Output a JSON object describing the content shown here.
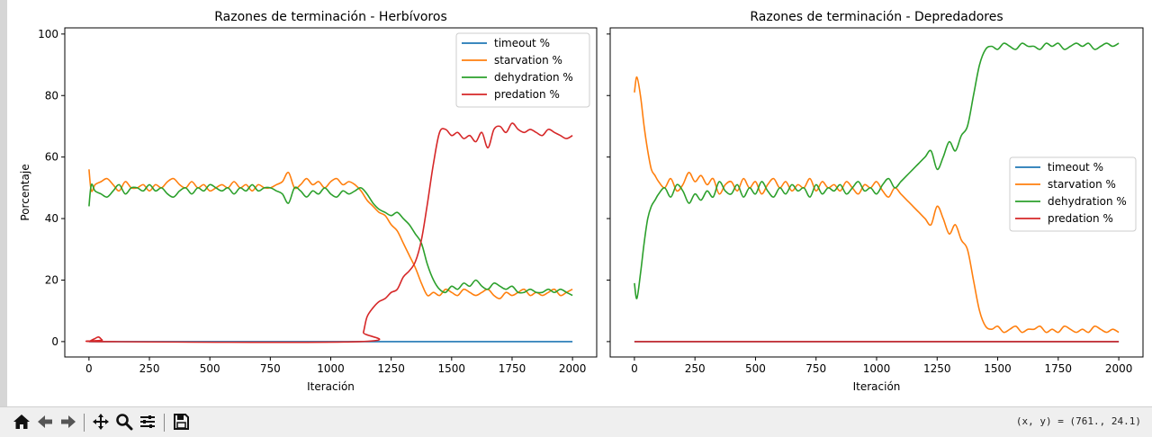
{
  "chart_data": [
    {
      "type": "line",
      "title": "Razones de terminación - Herbívoros",
      "xlabel": "Iteración",
      "ylabel": "Porcentaje",
      "xlim": [
        -100,
        2100
      ],
      "ylim": [
        -5,
        102
      ],
      "xticks": [
        0,
        250,
        500,
        750,
        1000,
        1250,
        1500,
        1750,
        2000
      ],
      "yticks": [
        0,
        20,
        40,
        60,
        80,
        100
      ],
      "grid": false,
      "legend": "upper right",
      "series": [
        {
          "name": "timeout %",
          "color": "#1f77b4",
          "x": [
            0,
            2000
          ],
          "y": [
            0,
            0
          ]
        },
        {
          "name": "starvation %",
          "color": "#ff7f0e",
          "x": [
            0,
            10,
            25,
            50,
            75,
            100,
            125,
            150,
            175,
            200,
            225,
            250,
            275,
            300,
            325,
            350,
            375,
            400,
            425,
            450,
            475,
            500,
            525,
            550,
            575,
            600,
            625,
            650,
            675,
            700,
            725,
            750,
            775,
            800,
            825,
            850,
            875,
            900,
            925,
            950,
            975,
            1000,
            1025,
            1050,
            1075,
            1100,
            1125,
            1150,
            1175,
            1200,
            1225,
            1250,
            1275,
            1300,
            1325,
            1350,
            1375,
            1400,
            1425,
            1450,
            1475,
            1500,
            1525,
            1550,
            1575,
            1600,
            1625,
            1650,
            1675,
            1700,
            1725,
            1750,
            1775,
            1800,
            1825,
            1850,
            1875,
            1900,
            1925,
            1950,
            1975,
            2000
          ],
          "y": [
            56,
            49,
            51,
            52,
            53,
            51,
            49,
            52,
            50,
            50,
            51,
            49,
            51,
            50,
            52,
            53,
            51,
            50,
            52,
            50,
            51,
            49,
            50,
            51,
            50,
            52,
            50,
            51,
            49,
            51,
            50,
            50,
            51,
            52,
            55,
            50,
            51,
            53,
            51,
            52,
            50,
            52,
            53,
            51,
            52,
            51,
            49,
            46,
            44,
            42,
            41,
            38,
            36,
            32,
            28,
            24,
            19,
            15,
            16,
            15,
            17,
            16,
            15,
            17,
            16,
            15,
            16,
            17,
            15,
            14,
            16,
            15,
            16,
            17,
            15,
            16,
            15,
            16,
            17,
            15,
            16,
            17
          ]
        },
        {
          "name": "dehydration %",
          "color": "#2ca02c",
          "x": [
            0,
            10,
            25,
            50,
            75,
            100,
            125,
            150,
            175,
            200,
            225,
            250,
            275,
            300,
            325,
            350,
            375,
            400,
            425,
            450,
            475,
            500,
            525,
            550,
            575,
            600,
            625,
            650,
            675,
            700,
            725,
            750,
            775,
            800,
            825,
            850,
            875,
            900,
            925,
            950,
            975,
            1000,
            1025,
            1050,
            1075,
            1100,
            1125,
            1150,
            1175,
            1200,
            1225,
            1250,
            1275,
            1300,
            1325,
            1350,
            1375,
            1400,
            1425,
            1450,
            1475,
            1500,
            1525,
            1550,
            1575,
            1600,
            1625,
            1650,
            1675,
            1700,
            1725,
            1750,
            1775,
            1800,
            1825,
            1850,
            1875,
            1900,
            1925,
            1950,
            1975,
            2000
          ],
          "y": [
            44,
            51,
            49,
            48,
            47,
            49,
            51,
            48,
            50,
            50,
            49,
            51,
            49,
            50,
            48,
            47,
            49,
            50,
            48,
            50,
            49,
            51,
            50,
            49,
            50,
            48,
            50,
            49,
            51,
            49,
            50,
            50,
            49,
            48,
            45,
            50,
            49,
            47,
            49,
            48,
            50,
            48,
            47,
            49,
            48,
            49,
            50,
            48,
            45,
            43,
            42,
            41,
            42,
            40,
            38,
            35,
            32,
            25,
            20,
            17,
            16,
            18,
            17,
            19,
            18,
            20,
            18,
            17,
            19,
            18,
            17,
            18,
            16,
            16,
            17,
            16,
            16,
            17,
            16,
            17,
            16,
            15
          ]
        },
        {
          "name": "predation %",
          "color": "#d62728",
          "x": [
            0,
            25,
            40,
            55,
            70,
            1120,
            1135,
            1150,
            1175,
            1200,
            1225,
            1250,
            1275,
            1300,
            1325,
            1350,
            1375,
            1400,
            1425,
            1450,
            1475,
            1500,
            1525,
            1550,
            1575,
            1600,
            1625,
            1650,
            1675,
            1700,
            1725,
            1750,
            1775,
            1800,
            1825,
            1850,
            1875,
            1900,
            1925,
            1950,
            1975,
            2000
          ],
          "y": [
            0,
            1,
            1.5,
            0.5,
            0,
            0,
            3,
            8,
            11,
            13,
            14,
            16,
            17,
            21,
            23,
            26,
            33,
            45,
            58,
            68,
            69,
            67,
            68,
            66,
            67,
            65,
            68,
            63,
            69,
            70,
            68,
            71,
            69,
            68,
            69,
            68,
            67,
            69,
            68,
            67,
            66,
            67
          ]
        }
      ]
    },
    {
      "type": "line",
      "title": "Razones de terminación - Depredadores",
      "xlabel": "Iteración",
      "ylabel": "",
      "xlim": [
        -100,
        2100
      ],
      "ylim": [
        -5,
        102
      ],
      "xticks": [
        0,
        250,
        500,
        750,
        1000,
        1250,
        1500,
        1750,
        2000
      ],
      "yticks": [
        0,
        20,
        40,
        60,
        80,
        100
      ],
      "grid": false,
      "legend": "center right",
      "series": [
        {
          "name": "timeout %",
          "color": "#1f77b4",
          "x": [
            0,
            2000
          ],
          "y": [
            0,
            0
          ]
        },
        {
          "name": "starvation %",
          "color": "#ff7f0e",
          "x": [
            0,
            10,
            25,
            40,
            55,
            70,
            85,
            100,
            125,
            150,
            175,
            200,
            225,
            250,
            275,
            300,
            325,
            350,
            375,
            400,
            425,
            450,
            475,
            500,
            525,
            550,
            575,
            600,
            625,
            650,
            675,
            700,
            725,
            750,
            775,
            800,
            825,
            850,
            875,
            900,
            925,
            950,
            975,
            1000,
            1025,
            1050,
            1075,
            1100,
            1125,
            1150,
            1175,
            1200,
            1225,
            1250,
            1275,
            1300,
            1325,
            1350,
            1375,
            1400,
            1425,
            1450,
            1475,
            1500,
            1525,
            1550,
            1575,
            1600,
            1625,
            1650,
            1675,
            1700,
            1725,
            1750,
            1775,
            1800,
            1825,
            1850,
            1875,
            1900,
            1925,
            1950,
            1975,
            2000
          ],
          "y": [
            81,
            86,
            80,
            70,
            62,
            56,
            54,
            52,
            50,
            53,
            49,
            51,
            55,
            52,
            54,
            51,
            53,
            48,
            51,
            52,
            49,
            53,
            50,
            52,
            48,
            51,
            53,
            50,
            52,
            49,
            51,
            50,
            53,
            49,
            52,
            50,
            51,
            49,
            52,
            50,
            48,
            51,
            50,
            52,
            49,
            47,
            50,
            48,
            46,
            44,
            42,
            40,
            38,
            44,
            40,
            35,
            38,
            33,
            30,
            20,
            10,
            5,
            4,
            5,
            3,
            4,
            5,
            3,
            4,
            4,
            5,
            3,
            4,
            3,
            5,
            4,
            3,
            4,
            3,
            5,
            4,
            3,
            4,
            3
          ]
        },
        {
          "name": "dehydration %",
          "color": "#2ca02c",
          "x": [
            0,
            10,
            25,
            40,
            55,
            70,
            85,
            100,
            125,
            150,
            175,
            200,
            225,
            250,
            275,
            300,
            325,
            350,
            375,
            400,
            425,
            450,
            475,
            500,
            525,
            550,
            575,
            600,
            625,
            650,
            675,
            700,
            725,
            750,
            775,
            800,
            825,
            850,
            875,
            900,
            925,
            950,
            975,
            1000,
            1025,
            1050,
            1075,
            1100,
            1125,
            1150,
            1175,
            1200,
            1225,
            1250,
            1275,
            1300,
            1325,
            1350,
            1375,
            1400,
            1425,
            1450,
            1475,
            1500,
            1525,
            1550,
            1575,
            1600,
            1625,
            1650,
            1675,
            1700,
            1725,
            1750,
            1775,
            1800,
            1825,
            1850,
            1875,
            1900,
            1925,
            1950,
            1975,
            2000
          ],
          "y": [
            19,
            14,
            22,
            32,
            40,
            44,
            46,
            48,
            50,
            47,
            51,
            49,
            45,
            48,
            46,
            49,
            47,
            52,
            49,
            48,
            51,
            47,
            50,
            48,
            52,
            49,
            47,
            50,
            48,
            51,
            49,
            50,
            47,
            51,
            48,
            50,
            49,
            51,
            48,
            50,
            52,
            49,
            50,
            48,
            51,
            53,
            50,
            52,
            54,
            56,
            58,
            60,
            62,
            56,
            60,
            65,
            62,
            67,
            70,
            80,
            90,
            95,
            96,
            95,
            97,
            96,
            95,
            97,
            96,
            96,
            95,
            97,
            96,
            97,
            95,
            96,
            97,
            96,
            97,
            95,
            96,
            97,
            96,
            97
          ]
        },
        {
          "name": "predation %",
          "color": "#d62728",
          "x": [
            0,
            2000
          ],
          "y": [
            0,
            0
          ]
        }
      ]
    }
  ],
  "toolbar": {
    "buttons": [
      {
        "name": "home-icon"
      },
      {
        "name": "back-arrow-icon"
      },
      {
        "name": "forward-arrow-icon"
      },
      {
        "name": "pan-move-icon"
      },
      {
        "name": "zoom-magnifier-icon"
      },
      {
        "name": "configure-subplots-icon"
      },
      {
        "name": "save-disk-icon"
      }
    ],
    "coords_text": "(x, y) = (761., 24.1)"
  }
}
